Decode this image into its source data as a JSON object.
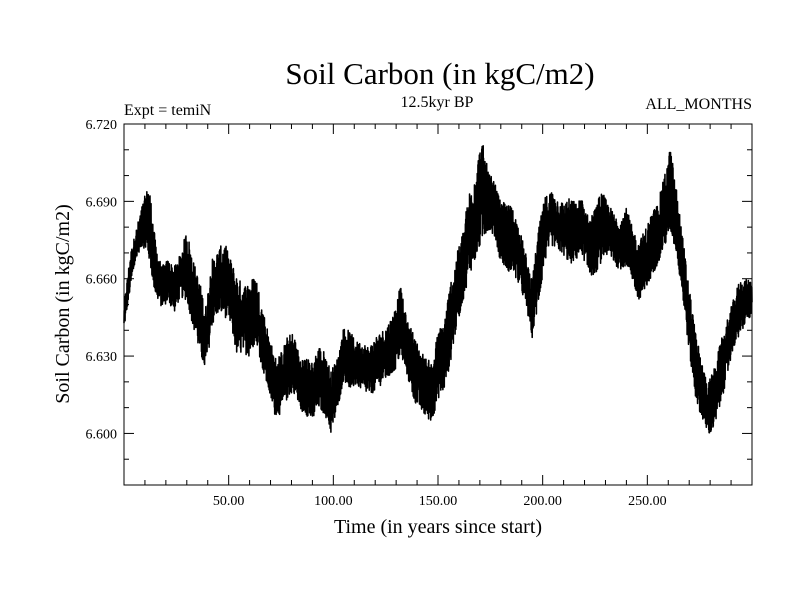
{
  "header": {
    "title": "Soil Carbon (in kgC/m2)",
    "left": "Expt = temiN",
    "center": "12.5kyr BP",
    "right": "ALL_MONTHS"
  },
  "chart_data": {
    "type": "line",
    "title": "Soil Carbon (in kgC/m2)",
    "xlabel": "Time (in years since start)",
    "ylabel": "Soil Carbon (in kgC/m2)",
    "xlim": [
      0,
      300
    ],
    "ylim": [
      6.58,
      6.72
    ],
    "x_ticks": [
      {
        "value": 50,
        "label": "50.00"
      },
      {
        "value": 100,
        "label": "100.00"
      },
      {
        "value": 150,
        "label": "150.00"
      },
      {
        "value": 200,
        "label": "200.00"
      },
      {
        "value": 250,
        "label": "250.00"
      }
    ],
    "y_ticks": [
      {
        "value": 6.72,
        "label": "6.720"
      },
      {
        "value": 6.69,
        "label": "6.690"
      },
      {
        "value": 6.66,
        "label": "6.660"
      },
      {
        "value": 6.63,
        "label": "6.630"
      },
      {
        "value": 6.6,
        "label": "6.600"
      }
    ],
    "series": [
      {
        "name": "Soil Carbon",
        "resolution": "monthly",
        "envelope_x": [
          0,
          3,
          6,
          9,
          12,
          15,
          18,
          21,
          24,
          27,
          30,
          33,
          36,
          39,
          42,
          45,
          48,
          51,
          54,
          57,
          60,
          63,
          66,
          69,
          72,
          75,
          78,
          81,
          84,
          87,
          90,
          93,
          96,
          99,
          102,
          105,
          108,
          111,
          114,
          117,
          120,
          123,
          126,
          129,
          132,
          135,
          138,
          141,
          144,
          147,
          150,
          153,
          156,
          159,
          162,
          165,
          168,
          171,
          174,
          177,
          180,
          183,
          186,
          189,
          192,
          195,
          198,
          201,
          204,
          207,
          210,
          213,
          216,
          219,
          222,
          225,
          228,
          231,
          234,
          237,
          240,
          243,
          246,
          249,
          252,
          255,
          258,
          261,
          264,
          267,
          270,
          273,
          276,
          279,
          282,
          285,
          288,
          291,
          294,
          297,
          300
        ],
        "envelope_min": [
          6.64,
          6.655,
          6.668,
          6.672,
          6.665,
          6.652,
          6.648,
          6.65,
          6.646,
          6.652,
          6.65,
          6.64,
          6.63,
          6.622,
          6.64,
          6.645,
          6.644,
          6.64,
          6.628,
          6.63,
          6.628,
          6.635,
          6.624,
          6.615,
          6.606,
          6.606,
          6.612,
          6.615,
          6.608,
          6.606,
          6.603,
          6.608,
          6.606,
          6.598,
          6.608,
          6.62,
          6.615,
          6.618,
          6.615,
          6.614,
          6.615,
          6.618,
          6.62,
          6.622,
          6.628,
          6.622,
          6.612,
          6.608,
          6.605,
          6.603,
          6.612,
          6.615,
          6.626,
          6.64,
          6.65,
          6.66,
          6.665,
          6.672,
          6.678,
          6.675,
          6.665,
          6.662,
          6.66,
          6.656,
          6.648,
          6.636,
          6.648,
          6.665,
          6.672,
          6.67,
          6.668,
          6.664,
          6.666,
          6.668,
          6.66,
          6.66,
          6.665,
          6.668,
          6.665,
          6.662,
          6.664,
          6.658,
          6.648,
          6.652,
          6.66,
          6.664,
          6.67,
          6.676,
          6.668,
          6.65,
          6.63,
          6.612,
          6.605,
          6.598,
          6.6,
          6.61,
          6.62,
          6.632,
          6.636,
          6.642,
          6.645
        ],
        "envelope_max": [
          6.65,
          6.67,
          6.68,
          6.69,
          6.698,
          6.675,
          6.665,
          6.668,
          6.665,
          6.67,
          6.68,
          6.668,
          6.66,
          6.65,
          6.668,
          6.672,
          6.675,
          6.668,
          6.662,
          6.658,
          6.66,
          6.662,
          6.65,
          6.64,
          6.63,
          6.632,
          6.638,
          6.64,
          6.63,
          6.63,
          6.628,
          6.635,
          6.632,
          6.625,
          6.63,
          6.642,
          6.64,
          6.636,
          6.636,
          6.634,
          6.638,
          6.64,
          6.643,
          6.648,
          6.658,
          6.645,
          6.64,
          6.634,
          6.63,
          6.628,
          6.64,
          6.645,
          6.66,
          6.67,
          6.68,
          6.695,
          6.705,
          6.715,
          6.702,
          6.698,
          6.69,
          6.69,
          6.688,
          6.68,
          6.67,
          6.66,
          6.68,
          6.692,
          6.695,
          6.692,
          6.69,
          6.692,
          6.69,
          6.692,
          6.684,
          6.688,
          6.695,
          6.69,
          6.686,
          6.684,
          6.688,
          6.68,
          6.675,
          6.68,
          6.686,
          6.69,
          6.7,
          6.712,
          6.695,
          6.676,
          6.658,
          6.64,
          6.628,
          6.62,
          6.626,
          6.636,
          6.644,
          6.652,
          6.66,
          6.66,
          6.66
        ]
      }
    ]
  }
}
